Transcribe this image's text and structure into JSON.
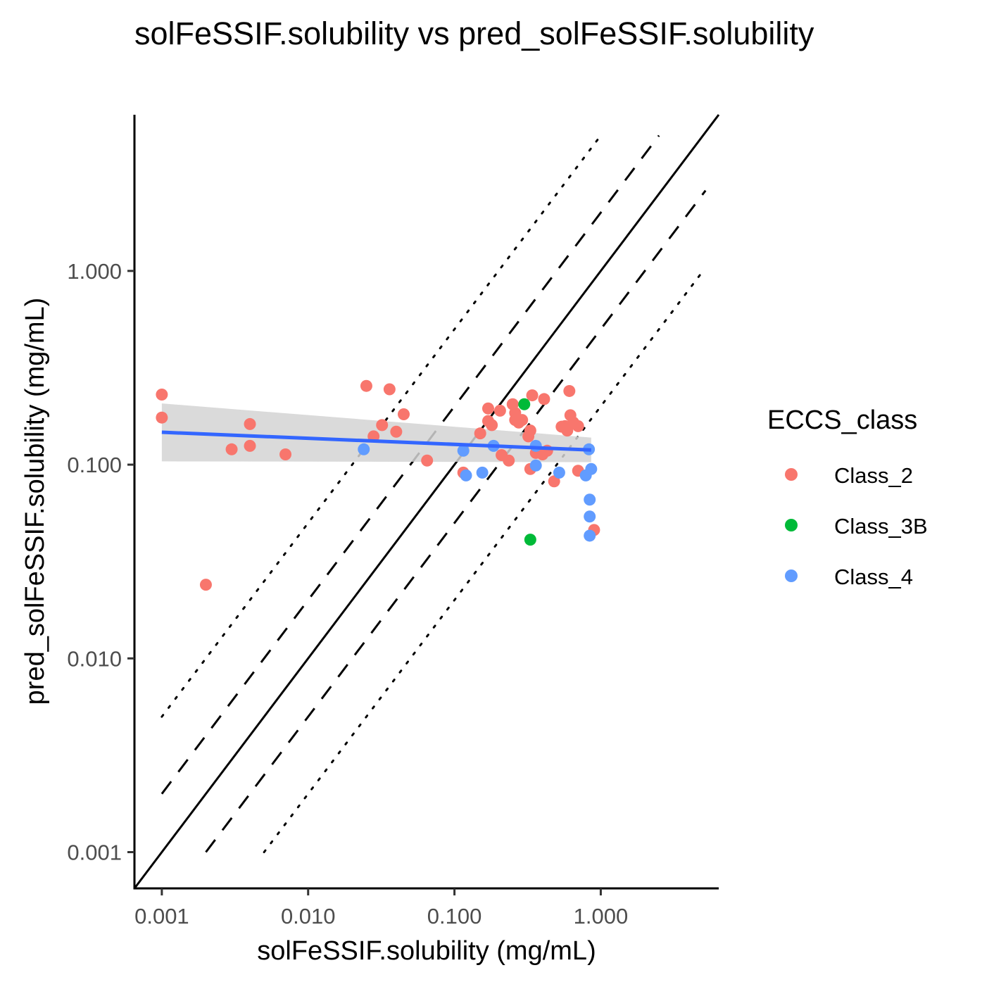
{
  "chart_data": {
    "type": "scatter",
    "title": "solFeSSIF.solubility vs pred_solFeSSIF.solubility",
    "xlabel": "solFeSSIF.solubility (mg/mL)",
    "ylabel": "pred_solFeSSIF.solubility (mg/mL)",
    "x_scale": "log10",
    "y_scale": "log10",
    "x_ticks": [
      "0.001",
      "0.010",
      "0.100",
      "1.000"
    ],
    "y_ticks": [
      "0.001",
      "0.010",
      "0.100",
      "1.000"
    ],
    "xlim": [
      0.00065,
      6.4
    ],
    "ylim": [
      0.00065,
      6.4
    ],
    "grid": false,
    "legend": {
      "title": "ECCS_class",
      "position": "right",
      "entries": [
        {
          "name": "Class_2",
          "color": "#F8766D"
        },
        {
          "name": "Class_3B",
          "color": "#00BA38"
        },
        {
          "name": "Class_4",
          "color": "#619CFF"
        }
      ]
    },
    "series": [
      {
        "name": "Class_2",
        "color": "#F8766D",
        "points": [
          [
            0.001,
            0.23
          ],
          [
            0.001,
            0.175
          ],
          [
            0.002,
            0.024
          ],
          [
            0.003,
            0.12
          ],
          [
            0.004,
            0.162
          ],
          [
            0.004,
            0.125
          ],
          [
            0.007,
            0.113
          ],
          [
            0.025,
            0.255
          ],
          [
            0.028,
            0.14
          ],
          [
            0.032,
            0.16
          ],
          [
            0.036,
            0.245
          ],
          [
            0.04,
            0.148
          ],
          [
            0.045,
            0.182
          ],
          [
            0.065,
            0.105
          ],
          [
            0.115,
            0.091
          ],
          [
            0.15,
            0.145
          ],
          [
            0.17,
            0.195
          ],
          [
            0.17,
            0.168
          ],
          [
            0.18,
            0.16
          ],
          [
            0.205,
            0.19
          ],
          [
            0.21,
            0.112
          ],
          [
            0.235,
            0.105
          ],
          [
            0.25,
            0.205
          ],
          [
            0.26,
            0.185
          ],
          [
            0.26,
            0.17
          ],
          [
            0.275,
            0.165
          ],
          [
            0.29,
            0.17
          ],
          [
            0.32,
            0.14
          ],
          [
            0.33,
            0.15
          ],
          [
            0.33,
            0.095
          ],
          [
            0.34,
            0.228
          ],
          [
            0.36,
            0.115
          ],
          [
            0.4,
            0.113
          ],
          [
            0.41,
            0.218
          ],
          [
            0.43,
            0.118
          ],
          [
            0.48,
            0.082
          ],
          [
            0.54,
            0.157
          ],
          [
            0.57,
            0.158
          ],
          [
            0.59,
            0.15
          ],
          [
            0.61,
            0.24
          ],
          [
            0.62,
            0.18
          ],
          [
            0.65,
            0.165
          ],
          [
            0.7,
            0.158
          ],
          [
            0.7,
            0.093
          ],
          [
            0.9,
            0.046
          ]
        ]
      },
      {
        "name": "Class_3B",
        "color": "#00BA38",
        "points": [
          [
            0.3,
            0.205
          ],
          [
            0.33,
            0.041
          ]
        ]
      },
      {
        "name": "Class_4",
        "color": "#619CFF",
        "points": [
          [
            0.024,
            0.12
          ],
          [
            0.115,
            0.118
          ],
          [
            0.12,
            0.088
          ],
          [
            0.155,
            0.091
          ],
          [
            0.185,
            0.125
          ],
          [
            0.36,
            0.125
          ],
          [
            0.36,
            0.099
          ],
          [
            0.52,
            0.091
          ],
          [
            0.79,
            0.088
          ],
          [
            0.83,
            0.12
          ],
          [
            0.84,
            0.066
          ],
          [
            0.84,
            0.054
          ],
          [
            0.84,
            0.043
          ],
          [
            0.86,
            0.095
          ]
        ]
      }
    ],
    "reference_lines": [
      {
        "style": "solid",
        "fold": 1
      },
      {
        "style": "dashed",
        "fold": 2
      },
      {
        "style": "dotted",
        "fold": 5
      }
    ],
    "trend_line": {
      "color": "#3366FF",
      "band_color": "#D3D3D3",
      "x": [
        0.001,
        0.86
      ],
      "fit": [
        0.147,
        0.119
      ],
      "lower": [
        0.104,
        0.103
      ],
      "upper": [
        0.207,
        0.138
      ]
    }
  }
}
